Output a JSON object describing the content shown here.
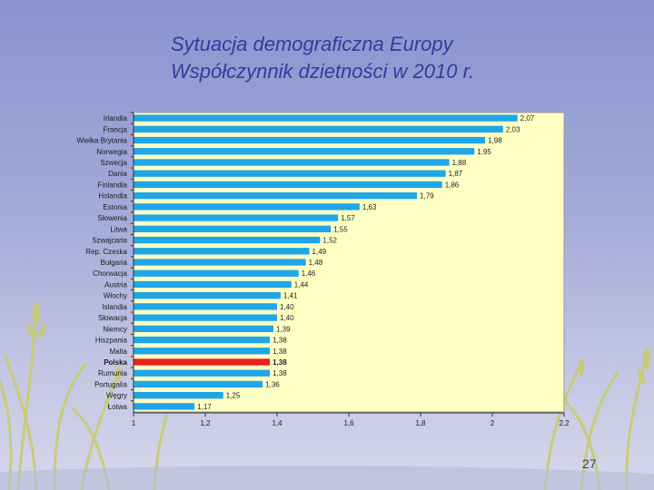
{
  "slide": {
    "title_line1": "Sytuacja demograficzna Europy",
    "title_line2": "Współczynnik dzietności w 2010 r.",
    "page_number": "27"
  },
  "colors": {
    "plot_background": "#ffffc4",
    "bar": "#1fa6e8",
    "highlight_bar": "#e8221d",
    "title": "#2f3da0"
  },
  "chart_data": {
    "type": "bar",
    "orientation": "horizontal",
    "title": "",
    "xlabel": "",
    "ylabel": "",
    "xlim": [
      1,
      2.2
    ],
    "grid": false,
    "x_ticks": [
      "1",
      "1,2",
      "1,4",
      "1,6",
      "1,8",
      "2",
      "2,2"
    ],
    "x_tick_values": [
      1,
      1.2,
      1.4,
      1.6,
      1.8,
      2,
      2.2
    ],
    "highlight_category": "Polska",
    "categories": [
      "Irlandia",
      "Francja",
      "Wielka Brytania",
      "Norwegia",
      "Szwecja",
      "Dania",
      "Finlandia",
      "Holandia",
      "Estonia",
      "Słowenia",
      "Litwa",
      "Szwajcaria",
      "Rep. Czeska",
      "Bułgaria",
      "Chorwacja",
      "Austria",
      "Włochy",
      "Islandia",
      "Słowacja",
      "Niemcy",
      "Hiszpania",
      "Malta",
      "Polska",
      "Rumunia",
      "Portugalia",
      "Węgry",
      "Łotwa"
    ],
    "values": [
      2.07,
      2.03,
      1.98,
      1.95,
      1.88,
      1.87,
      1.86,
      1.79,
      1.63,
      1.57,
      1.55,
      1.52,
      1.49,
      1.48,
      1.46,
      1.44,
      1.41,
      1.4,
      1.4,
      1.39,
      1.38,
      1.38,
      1.38,
      1.38,
      1.36,
      1.25,
      1.17
    ],
    "value_labels": [
      "2,07",
      "2,03",
      "1,98",
      "1,95",
      "1,88",
      "1,87",
      "1,86",
      "1,79",
      "1,63",
      "1,57",
      "1,55",
      "1,52",
      "1,49",
      "1,48",
      "1,46",
      "1,44",
      "1,41",
      "1,40",
      "1,40",
      "1,39",
      "1,38",
      "1,38",
      "1,38",
      "1,38",
      "1,36",
      "1,25",
      "1,17"
    ]
  }
}
